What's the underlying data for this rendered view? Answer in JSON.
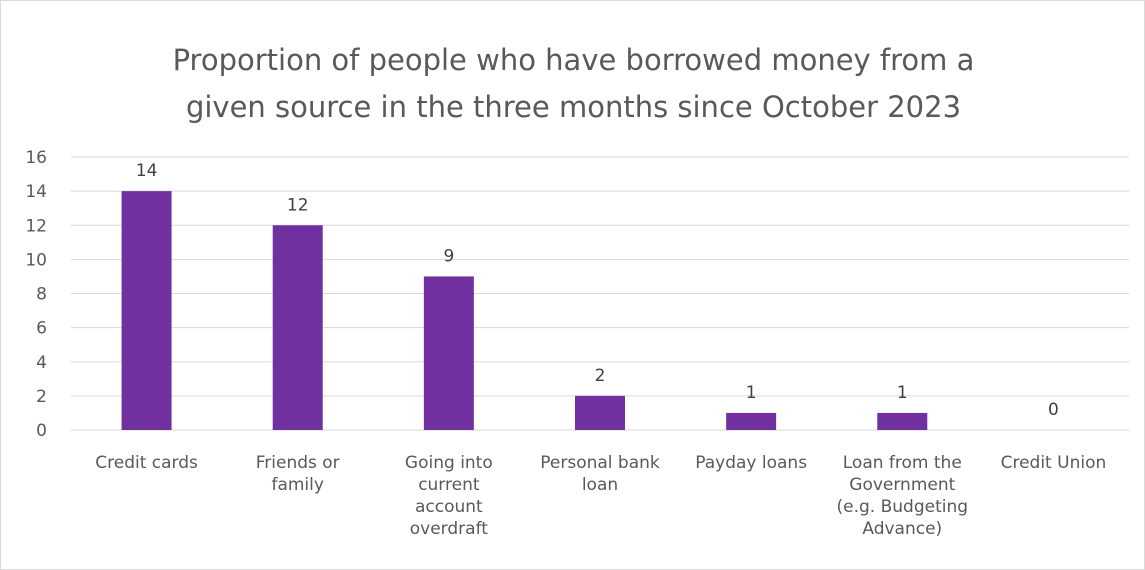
{
  "chart_data": {
    "type": "bar",
    "title_lines": [
      "Proportion of people who have borrowed money from a",
      "given source in the three months since October 2023"
    ],
    "categories": [
      [
        "Credit cards"
      ],
      [
        "Friends or",
        "family"
      ],
      [
        "Going into",
        "current",
        "account",
        "overdraft"
      ],
      [
        "Personal bank",
        "loan"
      ],
      [
        "Payday loans"
      ],
      [
        "Loan from the",
        "Government",
        "(e.g. Budgeting",
        "Advance)"
      ],
      [
        "Credit Union"
      ]
    ],
    "values": [
      14,
      12,
      9,
      2,
      1,
      1,
      0
    ],
    "data_labels": [
      "14",
      "12",
      "9",
      "2",
      "1",
      "1",
      "0"
    ],
    "yticks": [
      0,
      2,
      4,
      6,
      8,
      10,
      12,
      14,
      16
    ],
    "ylim": [
      0,
      16
    ],
    "grid": true,
    "legend": false,
    "colors": {
      "bar": "#7030a0",
      "grid": "#d9d9d9",
      "text": "#595959"
    }
  }
}
